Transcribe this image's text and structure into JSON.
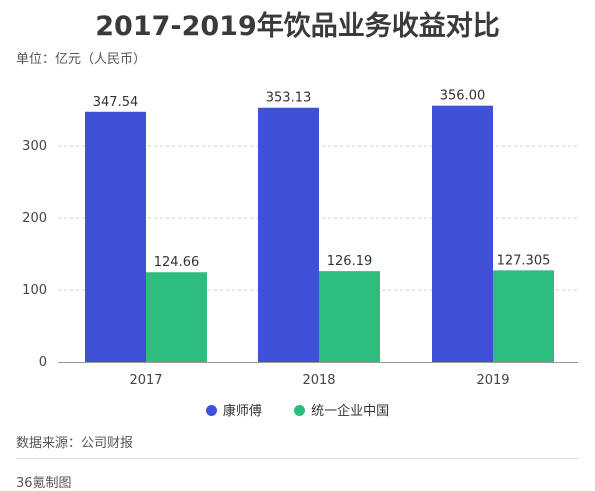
{
  "chart_data": {
    "type": "bar",
    "title": "2017-2019年饮品业务收益对比",
    "unit_label": "单位：亿元（人民币）",
    "categories": [
      "2017",
      "2018",
      "2019"
    ],
    "series": [
      {
        "name": "康师傅",
        "values": [
          347.54,
          353.13,
          356.0
        ],
        "labels": [
          "347.54",
          "353.13",
          "356.00"
        ],
        "color": "#3f51d8"
      },
      {
        "name": "统一企业中国",
        "values": [
          124.66,
          126.19,
          127.305
        ],
        "labels": [
          "124.66",
          "126.19",
          "127.305"
        ],
        "color": "#2dbd7e"
      }
    ],
    "yticks": [
      0,
      100,
      200,
      300
    ],
    "ylim": [
      0,
      380
    ],
    "grid": true,
    "legend_position": "bottom"
  },
  "footer": {
    "source": "数据来源：公司财报",
    "credit": "36氪制图"
  }
}
